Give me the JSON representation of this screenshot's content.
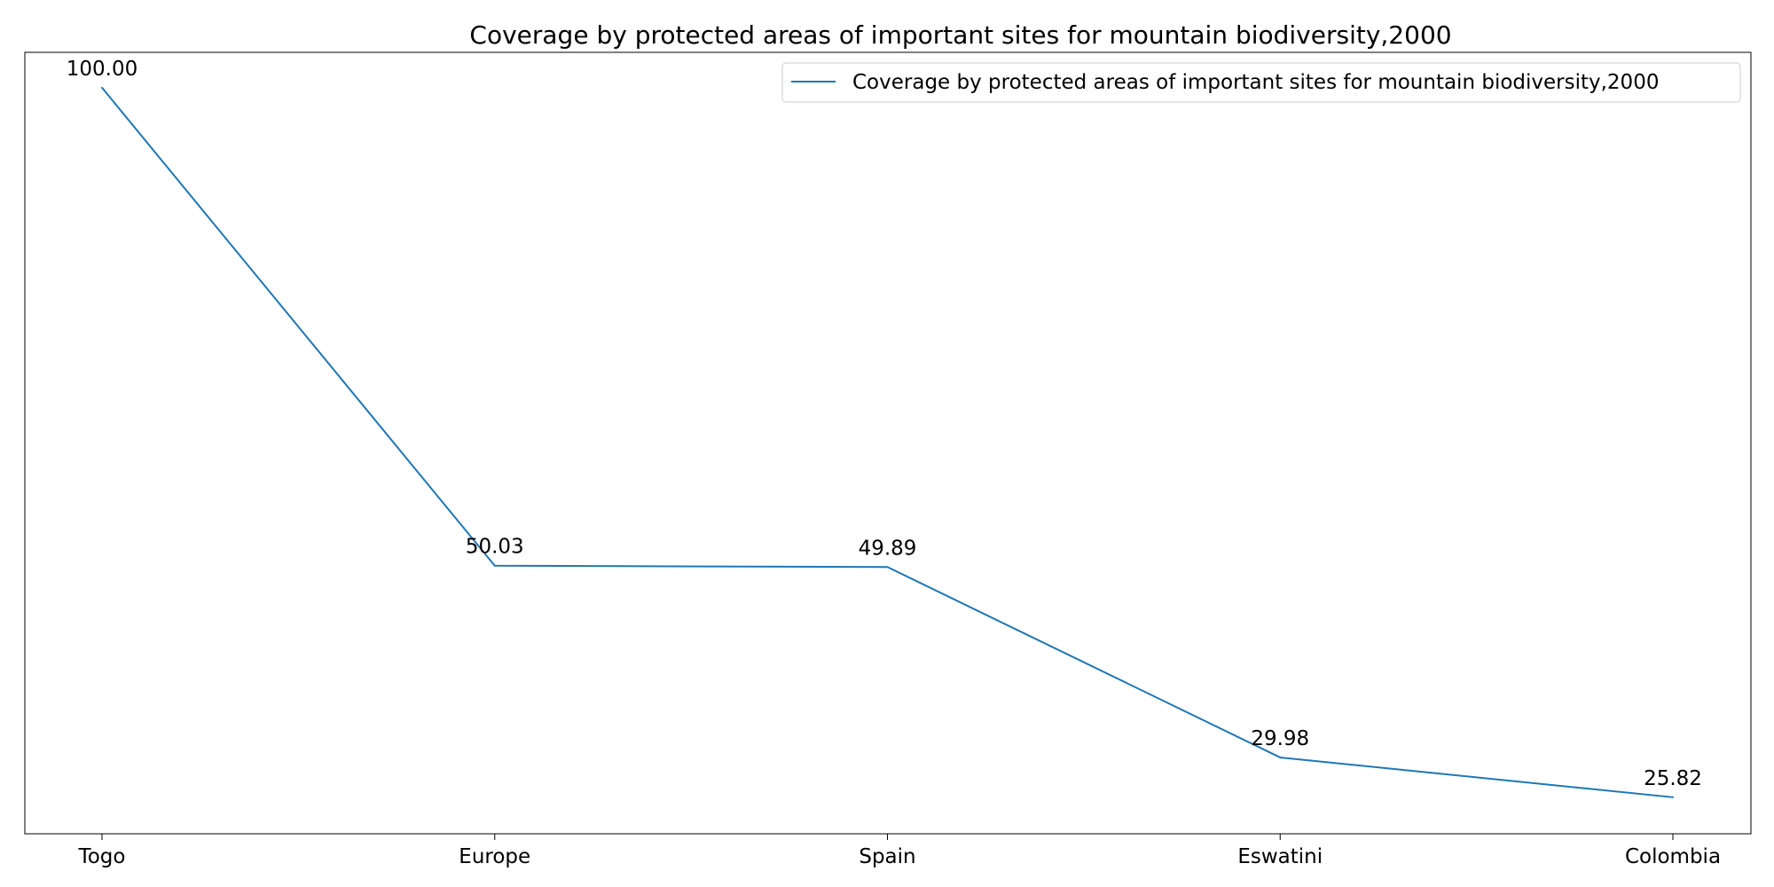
{
  "chart_data": {
    "type": "line",
    "title": "Coverage by protected areas of important sites for mountain biodiversity,2000",
    "xlabel": "",
    "ylabel": "",
    "categories": [
      "Togo",
      "Europe",
      "Spain",
      "Eswatini",
      "Colombia"
    ],
    "series": [
      {
        "name": "Coverage by protected areas of important sites for mountain biodiversity,2000",
        "values": [
          100.0,
          50.03,
          49.89,
          29.98,
          25.82
        ],
        "labels": [
          "100.00",
          "50.03",
          "49.89",
          "29.98",
          "25.82"
        ],
        "color": "#1f77b4"
      }
    ],
    "ylim": [
      22.0,
      103.7
    ],
    "y_ticks_visible": false,
    "grid": false,
    "legend_position": "top-right"
  }
}
